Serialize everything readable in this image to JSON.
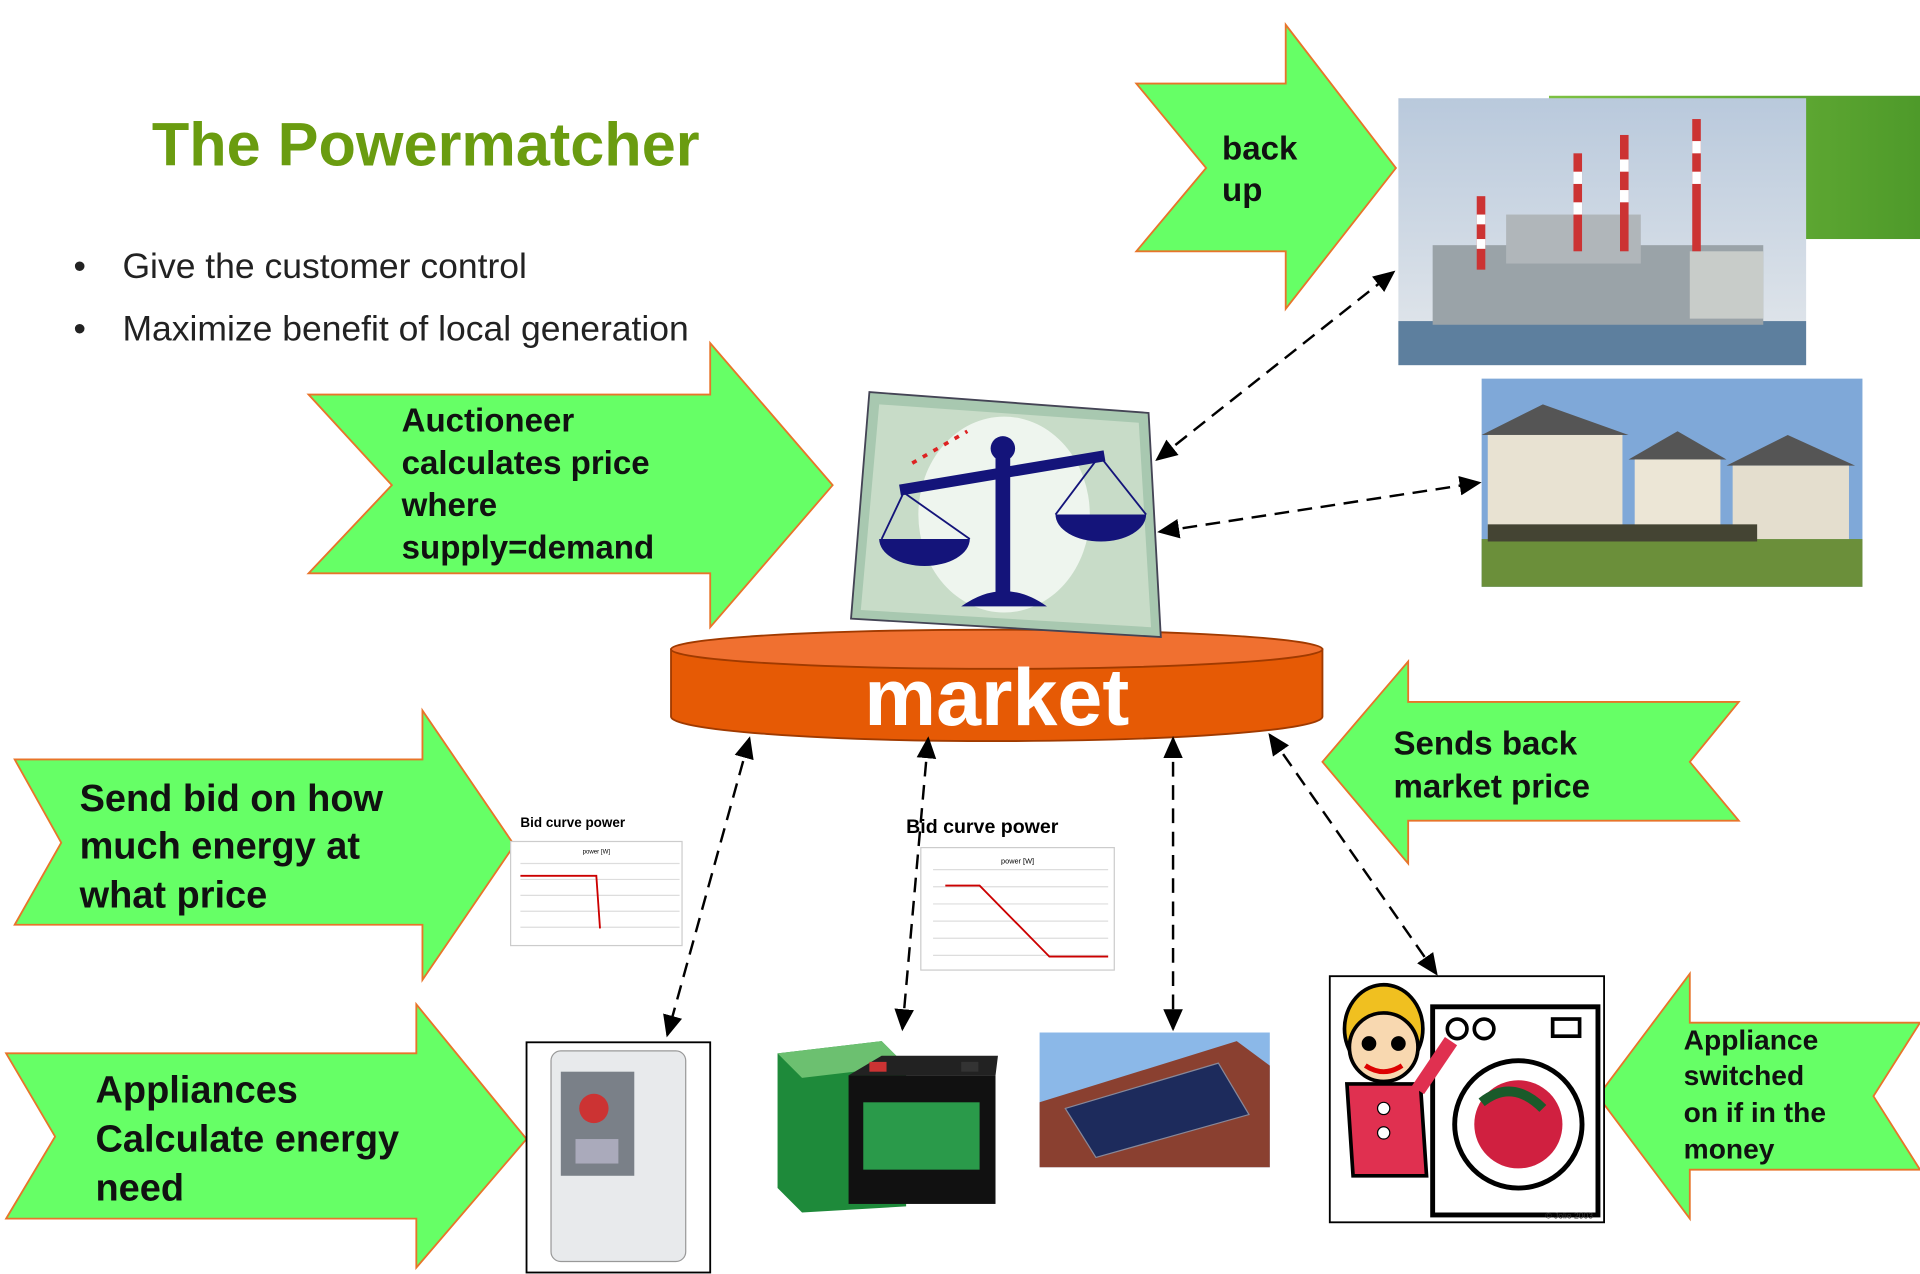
{
  "title": "The Powermatcher",
  "bullets": [
    "Give the customer control",
    "Maximize benefit of local generation"
  ],
  "arrows": {
    "backup": [
      "back",
      "up"
    ],
    "auctioneer": [
      "Auctioneer",
      "calculates price",
      "where",
      "supply=demand"
    ],
    "send_bid": [
      "Send bid on how",
      "much energy at",
      "what price"
    ],
    "appliances": [
      "Appliances",
      "Calculate energy",
      "need"
    ],
    "sends_back": [
      "Sends back",
      "market price"
    ],
    "switched": [
      "Appliance",
      "switched",
      "on if in the",
      "money"
    ]
  },
  "market": "market",
  "bid_curves": [
    {
      "title": "Bid curve power",
      "axis": "power [W]"
    },
    {
      "title": "Bid curve power",
      "axis": "power [W]"
    }
  ],
  "copyright": "© Jolie 2003"
}
